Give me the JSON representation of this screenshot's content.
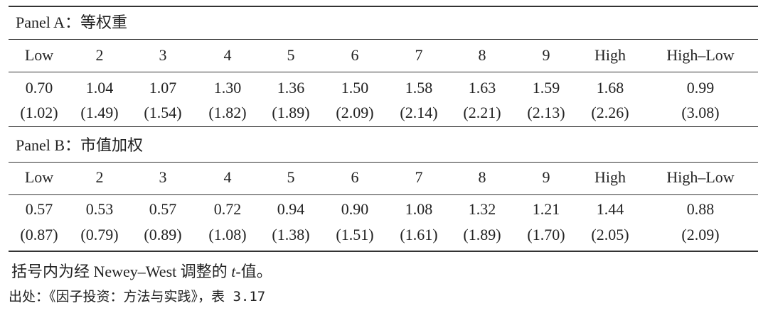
{
  "table": {
    "panels": [
      {
        "title": "Panel A：等权重",
        "header": [
          "Low",
          "2",
          "3",
          "4",
          "5",
          "6",
          "7",
          "8",
          "9",
          "High",
          "High–Low"
        ],
        "rows": [
          [
            "0.70",
            "1.04",
            "1.07",
            "1.30",
            "1.36",
            "1.50",
            "1.58",
            "1.63",
            "1.59",
            "1.68",
            "0.99"
          ],
          [
            "(1.02)",
            "(1.49)",
            "(1.54)",
            "(1.82)",
            "(1.89)",
            "(2.09)",
            "(2.14)",
            "(2.21)",
            "(2.13)",
            "(2.26)",
            "(3.08)"
          ]
        ]
      },
      {
        "title": "Panel B：市值加权",
        "header": [
          "Low",
          "2",
          "3",
          "4",
          "5",
          "6",
          "7",
          "8",
          "9",
          "High",
          "High–Low"
        ],
        "rows": [
          [
            "0.57",
            "0.53",
            "0.57",
            "0.72",
            "0.94",
            "0.90",
            "1.08",
            "1.32",
            "1.21",
            "1.44",
            "0.88"
          ],
          [
            "(0.87)",
            "(0.79)",
            "(0.89)",
            "(1.08)",
            "(1.38)",
            "(1.51)",
            "(1.61)",
            "(1.89)",
            "(1.70)",
            "(2.05)",
            "(2.09)"
          ]
        ]
      }
    ]
  },
  "note": {
    "parts": [
      "括号内为经 Newey–West 调整的 ",
      "t",
      "-值。"
    ]
  },
  "source": "出处：《因子投资：方法与实践》，表 3.17"
}
